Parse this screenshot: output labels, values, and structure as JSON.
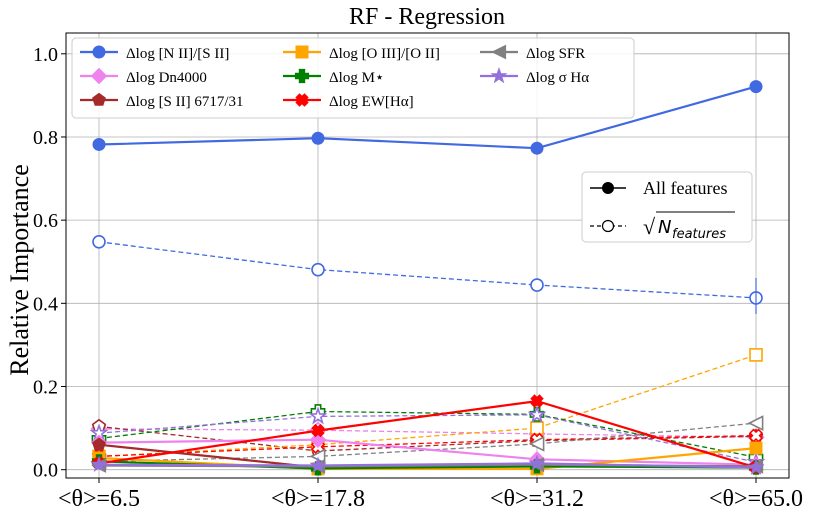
{
  "chart_data": {
    "type": "line",
    "title": "RF - Regression",
    "xlabel": "",
    "ylabel": "Relative Importance",
    "categories": [
      "<θ>=6.5",
      "<θ>=17.8",
      "<θ>=31.2",
      "<θ>=65.0"
    ],
    "ylim": [
      -0.02,
      1.05
    ],
    "yticks": [
      "0.0",
      "0.2",
      "0.4",
      "0.6",
      "0.8",
      "1.0"
    ],
    "grid": true,
    "legend_position": "top-left",
    "style_legend": {
      "all": "All features",
      "sqrt_prefix": "√",
      "sqrt_label": "N",
      "sqrt_sub": "features"
    },
    "series": [
      {
        "name": "Δlog [N II]/[S II]",
        "color": "#4169e1",
        "marker": "circle",
        "values_all": [
          0.782,
          0.797,
          0.773,
          0.921
        ],
        "values_sqrt": [
          0.548,
          0.481,
          0.444,
          0.413
        ]
      },
      {
        "name": "Δlog Dn4000",
        "color": "#ee82ee",
        "marker": "diamond",
        "values_all": [
          0.065,
          0.072,
          0.025,
          0.012
        ],
        "values_sqrt": [
          0.098,
          0.095,
          0.086,
          0.078
        ]
      },
      {
        "name": "Δlog [S II] 6717/31",
        "color": "#a52a2a",
        "marker": "pentagon",
        "values_all": [
          0.06,
          0.005,
          0.01,
          0.008
        ],
        "values_sqrt": [
          0.104,
          0.045,
          0.07,
          0.08
        ]
      },
      {
        "name": "Δlog [O III]/[O II]",
        "color": "#ffa500",
        "marker": "square",
        "values_all": [
          0.028,
          0.002,
          0.002,
          0.052
        ],
        "values_sqrt": [
          0.032,
          0.06,
          0.1,
          0.276
        ]
      },
      {
        "name": "Δlog M⋆",
        "color": "#008000",
        "marker": "plus",
        "values_all": [
          0.02,
          0.003,
          0.008,
          0.005
        ],
        "values_sqrt": [
          0.075,
          0.14,
          0.133,
          0.03
        ]
      },
      {
        "name": "Δlog EW[Hα]",
        "color": "#ff0000",
        "marker": "x",
        "values_all": [
          0.015,
          0.094,
          0.165,
          0.005
        ],
        "values_sqrt": [
          0.032,
          0.055,
          0.072,
          0.082
        ]
      },
      {
        "name": "Δlog SFR",
        "color": "#808080",
        "marker": "triangle-left",
        "values_all": [
          0.01,
          0.008,
          0.012,
          0.008
        ],
        "values_sqrt": [
          0.02,
          0.032,
          0.062,
          0.112
        ]
      },
      {
        "name": "Δlog σ Hα",
        "color": "#9370db",
        "marker": "star",
        "values_all": [
          0.012,
          0.01,
          0.015,
          0.005
        ],
        "values_sqrt": [
          0.088,
          0.128,
          0.132,
          0.018
        ]
      }
    ]
  }
}
